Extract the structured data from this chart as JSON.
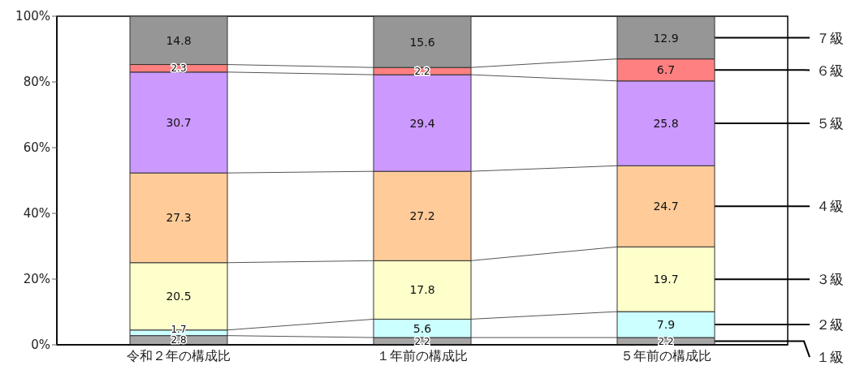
{
  "chart_data": {
    "type": "bar",
    "stacked": true,
    "categories": [
      "令和２年の構成比",
      "１年前の構成比",
      "５年前の構成比"
    ],
    "series": [
      {
        "name": "１級",
        "color": "#a6a6a6",
        "values": [
          2.8,
          2.2,
          2.2
        ]
      },
      {
        "name": "２級",
        "color": "#ccffff",
        "values": [
          1.7,
          5.6,
          7.9
        ]
      },
      {
        "name": "３級",
        "color": "#ffffcc",
        "values": [
          20.5,
          17.8,
          19.7
        ]
      },
      {
        "name": "４級",
        "color": "#ffcc99",
        "values": [
          27.3,
          27.2,
          24.7
        ]
      },
      {
        "name": "５級",
        "color": "#cc99ff",
        "values": [
          30.7,
          29.4,
          25.8
        ]
      },
      {
        "name": "６級",
        "color": "#ff8080",
        "values": [
          2.3,
          2.2,
          6.7
        ]
      },
      {
        "name": "７級",
        "color": "#969696",
        "values": [
          14.8,
          15.6,
          12.9
        ]
      }
    ],
    "ylim": [
      0,
      100
    ],
    "yticks": [
      {
        "value": 0,
        "label": "0%"
      },
      {
        "value": 20,
        "label": "20%"
      },
      {
        "value": 40,
        "label": "40%"
      },
      {
        "value": 60,
        "label": "60%"
      },
      {
        "value": 80,
        "label": "80%"
      },
      {
        "value": 100,
        "label": "100%"
      }
    ],
    "data_labels": true
  }
}
